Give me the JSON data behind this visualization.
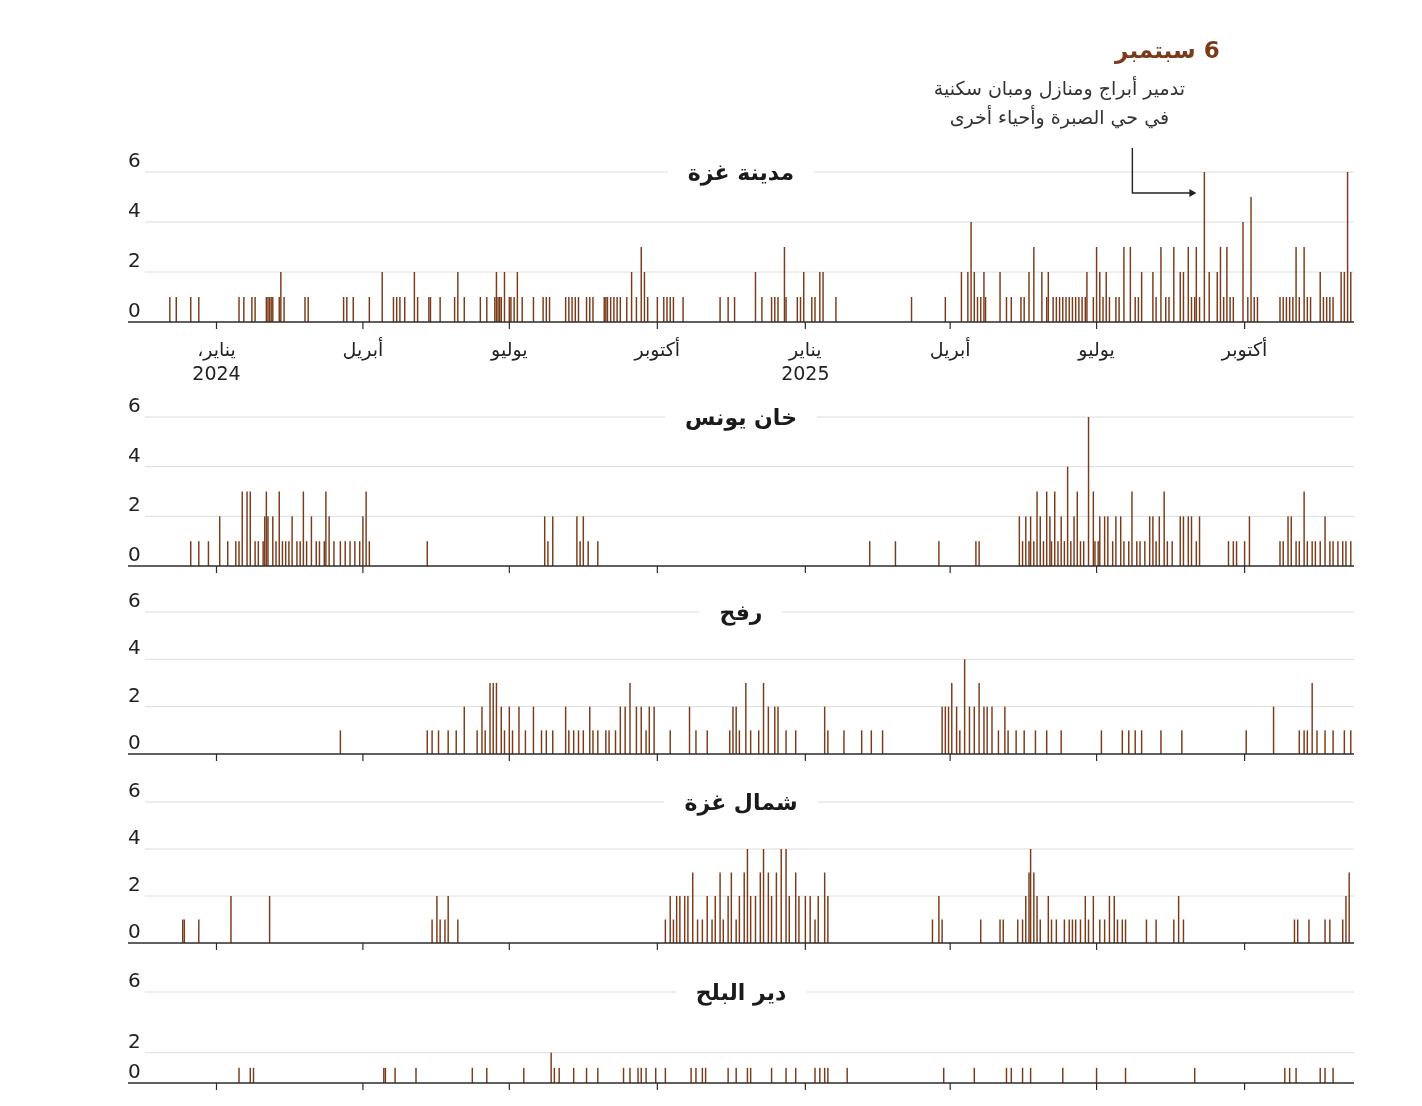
{
  "chart_data": [
    {
      "type": "bar",
      "title": "مدينة غزة",
      "color": "#7a3b1a",
      "grid": "y",
      "xlim": [
        "2023-11-07",
        "2025-12-08"
      ],
      "ylim": [
        0,
        6
      ],
      "yticks": [
        0,
        2,
        4,
        6
      ],
      "xticks": [
        {
          "value": "2024-01-01",
          "label": "يناير،\n2024"
        },
        {
          "value": "2024-04-01",
          "label": "أبريل"
        },
        {
          "value": "2024-07-01",
          "label": "يوليو"
        },
        {
          "value": "2024-10-01",
          "label": "أكتوبر"
        },
        {
          "value": "2025-01-01",
          "label": "يناير\n2025"
        },
        {
          "value": "2025-04-01",
          "label": "أبريل"
        },
        {
          "value": "2025-07-01",
          "label": "يوليو"
        },
        {
          "value": "2025-10-01",
          "label": "أكتوبر"
        }
      ],
      "annotations": [
        "6 سبتمبر",
        {
          "text": "تدمير أبراج ومنازل ومبان سكنية\nفي حي الصبرة وأحياء أخرى",
          "x": "2025-09-06",
          "y": 6
        }
      ],
      "x": [
        "2023-12-03",
        "2023-12-07",
        "2023-12-16",
        "2023-12-21",
        "2024-01-15",
        "2024-01-18",
        "2024-01-23",
        "2024-01-25",
        "2024-02-01",
        "2024-02-02",
        "2024-02-03",
        "2024-02-04",
        "2024-02-05",
        "2024-02-09",
        "2024-02-10",
        "2024-02-12",
        "2024-02-25",
        "2024-02-27",
        "2024-03-20",
        "2024-03-22",
        "2024-03-26",
        "2024-04-05",
        "2024-04-13",
        "2024-04-20",
        "2024-04-22",
        "2024-04-24",
        "2024-04-27",
        "2024-05-03",
        "2024-05-05",
        "2024-05-12",
        "2024-05-13",
        "2024-05-19",
        "2024-05-28",
        "2024-05-30",
        "2024-06-03",
        "2024-06-13",
        "2024-06-17",
        "2024-06-22",
        "2024-06-23",
        "2024-06-24",
        "2024-06-25",
        "2024-06-26",
        "2024-06-28",
        "2024-07-01",
        "2024-07-02",
        "2024-07-04",
        "2024-07-06",
        "2024-07-09",
        "2024-07-16",
        "2024-07-22",
        "2024-07-24",
        "2024-07-26",
        "2024-08-05",
        "2024-08-07",
        "2024-08-09",
        "2024-08-11",
        "2024-08-13",
        "2024-08-18",
        "2024-08-20",
        "2024-08-22",
        "2024-08-29",
        "2024-08-30",
        "2024-08-31",
        "2024-09-02",
        "2024-09-04",
        "2024-09-06",
        "2024-09-08",
        "2024-09-12",
        "2024-09-15",
        "2024-09-18",
        "2024-09-21",
        "2024-09-23",
        "2024-09-25",
        "2024-10-01",
        "2024-10-05",
        "2024-10-07",
        "2024-10-09",
        "2024-10-11",
        "2024-10-17",
        "2024-11-09",
        "2024-11-14",
        "2024-11-18",
        "2024-12-01",
        "2024-12-05",
        "2024-12-11",
        "2024-12-13",
        "2024-12-15",
        "2024-12-19",
        "2024-12-20",
        "2024-12-27",
        "2024-12-29",
        "2024-12-31",
        "2025-01-05",
        "2025-01-07",
        "2025-01-10",
        "2025-01-12",
        "2025-01-20",
        "2025-03-08",
        "2025-03-29",
        "2025-04-08",
        "2025-04-12",
        "2025-04-14",
        "2025-04-16",
        "2025-04-18",
        "2025-04-20",
        "2025-04-22",
        "2025-04-23",
        "2025-05-02",
        "2025-05-06",
        "2025-05-09",
        "2025-05-15",
        "2025-05-17",
        "2025-05-20",
        "2025-05-23",
        "2025-05-28",
        "2025-05-31",
        "2025-06-01",
        "2025-06-04",
        "2025-06-06",
        "2025-06-08",
        "2025-06-10",
        "2025-06-12",
        "2025-06-14",
        "2025-06-16",
        "2025-06-18",
        "2025-06-20",
        "2025-06-22",
        "2025-06-24",
        "2025-06-25",
        "2025-06-29",
        "2025-07-01",
        "2025-07-03",
        "2025-07-05",
        "2025-07-07",
        "2025-07-09",
        "2025-07-13",
        "2025-07-15",
        "2025-07-18",
        "2025-07-22",
        "2025-07-25",
        "2025-07-27",
        "2025-07-29",
        "2025-08-05",
        "2025-08-07",
        "2025-08-10",
        "2025-08-13",
        "2025-08-15",
        "2025-08-18",
        "2025-08-22",
        "2025-08-24",
        "2025-08-27",
        "2025-08-29",
        "2025-08-31",
        "2025-09-01",
        "2025-09-03",
        "2025-09-06",
        "2025-09-09",
        "2025-09-14",
        "2025-09-16",
        "2025-09-18",
        "2025-09-20",
        "2025-09-22",
        "2025-09-24",
        "2025-09-30",
        "2025-10-03",
        "2025-10-05",
        "2025-10-07",
        "2025-10-09",
        "2025-10-23",
        "2025-10-25",
        "2025-10-27",
        "2025-10-29",
        "2025-10-31",
        "2025-11-02",
        "2025-11-04",
        "2025-11-07",
        "2025-11-09",
        "2025-11-11",
        "2025-11-17",
        "2025-11-19",
        "2025-11-21",
        "2025-11-23",
        "2025-11-25",
        "2025-11-30",
        "2025-12-02",
        "2025-12-04",
        "2025-12-06"
      ],
      "values": [
        1,
        1,
        1,
        1,
        1,
        1,
        1,
        1,
        1,
        1,
        1,
        1,
        1,
        1,
        2,
        1,
        1,
        1,
        1,
        1,
        1,
        1,
        2,
        1,
        1,
        1,
        1,
        2,
        1,
        1,
        1,
        1,
        1,
        2,
        1,
        1,
        1,
        1,
        2,
        1,
        1,
        1,
        2,
        1,
        1,
        1,
        2,
        1,
        1,
        1,
        1,
        1,
        1,
        1,
        1,
        1,
        1,
        1,
        1,
        1,
        1,
        1,
        1,
        1,
        1,
        1,
        1,
        1,
        2,
        1,
        3,
        2,
        1,
        1,
        1,
        1,
        1,
        1,
        1,
        1,
        1,
        1,
        2,
        1,
        1,
        1,
        1,
        3,
        1,
        1,
        1,
        2,
        1,
        1,
        2,
        2,
        1,
        1,
        1,
        2,
        2,
        4,
        2,
        1,
        1,
        2,
        1,
        2,
        1,
        1,
        1,
        1,
        2,
        3,
        2,
        1,
        2,
        1,
        1,
        1,
        1,
        1,
        1,
        1,
        1,
        1,
        1,
        1,
        2,
        1,
        3,
        2,
        1,
        2,
        1,
        1,
        1,
        3,
        3,
        1,
        1,
        2,
        2,
        1,
        3,
        1,
        1,
        3,
        2,
        2,
        3,
        1,
        1,
        3,
        1,
        6,
        2,
        2,
        3,
        1,
        3,
        1,
        1,
        4,
        1,
        5,
        1,
        1,
        1,
        1,
        1,
        1,
        1,
        3,
        1,
        3,
        1,
        1,
        2,
        1,
        1,
        1,
        1,
        2,
        2,
        6,
        2
      ]
    },
    {
      "type": "bar",
      "title": "خان يونس",
      "color": "#7a3b1a",
      "grid": "y",
      "tick_labels": "y",
      "xlim": [
        "2023-11-07",
        "2025-12-08"
      ],
      "ylim": [
        0,
        6
      ],
      "yticks": [
        0,
        2,
        4,
        6
      ],
      "xticks": [
        {
          "value": "2024-01-01",
          "label": null
        },
        {
          "value": "2024-04-01",
          "label": null
        },
        {
          "value": "2024-07-01",
          "label": null
        },
        {
          "value": "2024-10-01",
          "label": null
        },
        {
          "value": "2025-01-01",
          "label": null
        },
        {
          "value": "2025-04-01",
          "label": null
        },
        {
          "value": "2025-07-01",
          "label": null
        },
        {
          "value": "2025-10-01",
          "label": null
        }
      ],
      "x": [
        "2023-12-16",
        "2023-12-21",
        "2023-12-27",
        "2024-01-03",
        "2024-01-08",
        "2024-01-13",
        "2024-01-15",
        "2024-01-17",
        "2024-01-20",
        "2024-01-22",
        "2024-01-25",
        "2024-01-27",
        "2024-01-30",
        "2024-01-31",
        "2024-02-01",
        "2024-02-02",
        "2024-02-05",
        "2024-02-07",
        "2024-02-09",
        "2024-02-11",
        "2024-02-13",
        "2024-02-15",
        "2024-02-17",
        "2024-02-20",
        "2024-02-22",
        "2024-02-24",
        "2024-02-26",
        "2024-02-29",
        "2024-03-03",
        "2024-03-05",
        "2024-03-08",
        "2024-03-09",
        "2024-03-11",
        "2024-03-14",
        "2024-03-18",
        "2024-03-21",
        "2024-03-24",
        "2024-03-27",
        "2024-03-30",
        "2024-04-01",
        "2024-04-03",
        "2024-04-05",
        "2024-05-11",
        "2024-07-23",
        "2024-07-25",
        "2024-07-28",
        "2024-08-12",
        "2024-08-14",
        "2024-08-16",
        "2024-08-19",
        "2024-08-25",
        "2025-02-10",
        "2025-02-26",
        "2025-03-25",
        "2025-04-17",
        "2025-04-19",
        "2025-05-14",
        "2025-05-16",
        "2025-05-18",
        "2025-05-20",
        "2025-05-21",
        "2025-05-23",
        "2025-05-25",
        "2025-05-27",
        "2025-05-29",
        "2025-05-31",
        "2025-06-02",
        "2025-06-03",
        "2025-06-05",
        "2025-06-07",
        "2025-06-09",
        "2025-06-11",
        "2025-06-13",
        "2025-06-15",
        "2025-06-17",
        "2025-06-19",
        "2025-06-21",
        "2025-06-23",
        "2025-06-26",
        "2025-06-29",
        "2025-06-30",
        "2025-07-02",
        "2025-07-03",
        "2025-07-06",
        "2025-07-08",
        "2025-07-11",
        "2025-07-13",
        "2025-07-16",
        "2025-07-18",
        "2025-07-21",
        "2025-07-23",
        "2025-07-26",
        "2025-07-28",
        "2025-07-31",
        "2025-08-03",
        "2025-08-05",
        "2025-08-07",
        "2025-08-09",
        "2025-08-12",
        "2025-08-14",
        "2025-08-17",
        "2025-08-22",
        "2025-08-24",
        "2025-08-27",
        "2025-08-29",
        "2025-09-01",
        "2025-09-03",
        "2025-09-21",
        "2025-09-24",
        "2025-09-26",
        "2025-10-01",
        "2025-10-04",
        "2025-10-23",
        "2025-10-25",
        "2025-10-28",
        "2025-10-30",
        "2025-11-02",
        "2025-11-04",
        "2025-11-07",
        "2025-11-09",
        "2025-11-12",
        "2025-11-14",
        "2025-11-17",
        "2025-11-20",
        "2025-11-23",
        "2025-11-25",
        "2025-11-28",
        "2025-12-01",
        "2025-12-03",
        "2025-12-06"
      ],
      "values": [
        1,
        1,
        1,
        2,
        1,
        1,
        1,
        3,
        3,
        3,
        1,
        1,
        1,
        2,
        3,
        2,
        2,
        1,
        3,
        1,
        1,
        1,
        2,
        1,
        1,
        3,
        1,
        2,
        1,
        1,
        1,
        3,
        2,
        1,
        1,
        1,
        1,
        1,
        1,
        2,
        3,
        1,
        1,
        2,
        1,
        2,
        2,
        1,
        2,
        1,
        1,
        1,
        1,
        1,
        1,
        1,
        2,
        1,
        2,
        1,
        2,
        1,
        3,
        2,
        1,
        3,
        2,
        1,
        3,
        1,
        2,
        1,
        4,
        1,
        2,
        3,
        1,
        1,
        6,
        3,
        1,
        1,
        2,
        2,
        2,
        1,
        2,
        2,
        1,
        1,
        3,
        1,
        1,
        1,
        2,
        2,
        1,
        2,
        3,
        1,
        1,
        2,
        2,
        2,
        2,
        1,
        2,
        1,
        1,
        1,
        1,
        2,
        1,
        1,
        2,
        2,
        1,
        1,
        3,
        1,
        1,
        1,
        1,
        2,
        1,
        1,
        1,
        1,
        1,
        1
      ]
    },
    {
      "type": "bar",
      "title": "رفح",
      "color": "#7a3b1a",
      "grid": "y",
      "tick_labels": "y",
      "xlim": [
        "2023-11-07",
        "2025-12-08"
      ],
      "ylim": [
        0,
        6
      ],
      "yticks": [
        0,
        2,
        4,
        6
      ],
      "xticks": [
        {
          "value": "2024-01-01",
          "label": null
        },
        {
          "value": "2024-04-01",
          "label": null
        },
        {
          "value": "2024-07-01",
          "label": null
        },
        {
          "value": "2024-10-01",
          "label": null
        },
        {
          "value": "2025-01-01",
          "label": null
        },
        {
          "value": "2025-04-01",
          "label": null
        },
        {
          "value": "2025-07-01",
          "label": null
        },
        {
          "value": "2025-10-01",
          "label": null
        }
      ],
      "x": [
        "2024-03-18",
        "2024-05-11",
        "2024-05-14",
        "2024-05-18",
        "2024-05-24",
        "2024-05-29",
        "2024-06-03",
        "2024-06-11",
        "2024-06-14",
        "2024-06-16",
        "2024-06-19",
        "2024-06-21",
        "2024-06-23",
        "2024-06-26",
        "2024-06-28",
        "2024-07-01",
        "2024-07-03",
        "2024-07-07",
        "2024-07-11",
        "2024-07-16",
        "2024-07-21",
        "2024-07-24",
        "2024-07-28",
        "2024-08-05",
        "2024-08-07",
        "2024-08-10",
        "2024-08-13",
        "2024-08-16",
        "2024-08-20",
        "2024-08-22",
        "2024-08-25",
        "2024-08-30",
        "2024-09-01",
        "2024-09-05",
        "2024-09-08",
        "2024-09-11",
        "2024-09-14",
        "2024-09-18",
        "2024-09-21",
        "2024-09-24",
        "2024-09-26",
        "2024-09-29",
        "2024-10-09",
        "2024-10-21",
        "2024-10-25",
        "2024-11-01",
        "2024-11-15",
        "2024-11-17",
        "2024-11-19",
        "2024-11-21",
        "2024-11-25",
        "2024-11-28",
        "2024-12-03",
        "2024-12-06",
        "2024-12-09",
        "2024-12-13",
        "2024-12-15",
        "2024-12-20",
        "2024-12-26",
        "2025-01-13",
        "2025-01-15",
        "2025-01-25",
        "2025-02-05",
        "2025-02-11",
        "2025-02-18",
        "2025-03-27",
        "2025-03-29",
        "2025-03-31",
        "2025-04-02",
        "2025-04-05",
        "2025-04-07",
        "2025-04-10",
        "2025-04-13",
        "2025-04-16",
        "2025-04-19",
        "2025-04-22",
        "2025-04-24",
        "2025-04-27",
        "2025-05-01",
        "2025-05-05",
        "2025-05-07",
        "2025-05-12",
        "2025-05-17",
        "2025-05-24",
        "2025-05-31",
        "2025-06-09",
        "2025-07-04",
        "2025-07-17",
        "2025-07-21",
        "2025-07-25",
        "2025-07-29",
        "2025-08-10",
        "2025-08-23",
        "2025-10-02",
        "2025-10-19",
        "2025-11-04",
        "2025-11-07",
        "2025-11-09",
        "2025-11-12",
        "2025-11-15",
        "2025-11-20",
        "2025-11-25",
        "2025-12-02",
        "2025-12-06"
      ],
      "values": [
        1,
        1,
        1,
        1,
        1,
        1,
        2,
        1,
        2,
        1,
        3,
        3,
        3,
        2,
        1,
        2,
        1,
        2,
        1,
        2,
        1,
        1,
        1,
        2,
        1,
        1,
        1,
        1,
        2,
        1,
        1,
        1,
        1,
        1,
        2,
        2,
        3,
        2,
        2,
        1,
        2,
        2,
        1,
        2,
        1,
        1,
        1,
        2,
        2,
        1,
        3,
        1,
        1,
        3,
        2,
        2,
        2,
        1,
        1,
        2,
        1,
        1,
        1,
        1,
        1,
        2,
        2,
        2,
        3,
        2,
        1,
        4,
        2,
        2,
        3,
        2,
        2,
        2,
        1,
        2,
        1,
        1,
        1,
        1,
        1,
        1,
        1,
        1,
        1,
        1,
        1,
        1,
        1,
        1,
        2,
        1,
        1,
        1,
        3,
        1,
        1,
        1,
        1,
        1
      ]
    },
    {
      "type": "bar",
      "title": "شمال غزة",
      "color": "#7a3b1a",
      "grid": "y",
      "tick_labels": "y",
      "xlim": [
        "2023-11-07",
        "2025-12-08"
      ],
      "ylim": [
        0,
        6
      ],
      "yticks": [
        0,
        2,
        4,
        6
      ],
      "xticks": [
        {
          "value": "2024-01-01",
          "label": null
        },
        {
          "value": "2024-04-01",
          "label": null
        },
        {
          "value": "2024-07-01",
          "label": null
        },
        {
          "value": "2024-10-01",
          "label": null
        },
        {
          "value": "2025-01-01",
          "label": null
        },
        {
          "value": "2025-04-01",
          "label": null
        },
        {
          "value": "2025-07-01",
          "label": null
        },
        {
          "value": "2025-10-01",
          "label": null
        }
      ],
      "x": [
        "2023-12-11",
        "2023-12-12",
        "2023-12-21",
        "2024-01-10",
        "2024-02-03",
        "2024-05-14",
        "2024-05-17",
        "2024-05-19",
        "2024-05-22",
        "2024-05-24",
        "2024-05-30",
        "2024-10-06",
        "2024-10-09",
        "2024-10-11",
        "2024-10-13",
        "2024-10-15",
        "2024-10-18",
        "2024-10-20",
        "2024-10-23",
        "2024-10-26",
        "2024-10-29",
        "2024-11-01",
        "2024-11-04",
        "2024-11-06",
        "2024-11-09",
        "2024-11-11",
        "2024-11-14",
        "2024-11-16",
        "2024-11-19",
        "2024-11-21",
        "2024-11-24",
        "2024-11-26",
        "2024-11-28",
        "2024-12-01",
        "2024-12-04",
        "2024-12-06",
        "2024-12-09",
        "2024-12-11",
        "2024-12-14",
        "2024-12-17",
        "2024-12-20",
        "2024-12-22",
        "2024-12-26",
        "2024-12-28",
        "2025-01-01",
        "2025-01-04",
        "2025-01-07",
        "2025-01-09",
        "2025-01-13",
        "2025-01-15",
        "2025-03-21",
        "2025-03-25",
        "2025-03-27",
        "2025-04-20",
        "2025-05-02",
        "2025-05-04",
        "2025-05-13",
        "2025-05-16",
        "2025-05-18",
        "2025-05-20",
        "2025-05-21",
        "2025-05-23",
        "2025-05-25",
        "2025-05-27",
        "2025-06-01",
        "2025-06-03",
        "2025-06-06",
        "2025-06-11",
        "2025-06-14",
        "2025-06-16",
        "2025-06-18",
        "2025-06-21",
        "2025-06-24",
        "2025-06-26",
        "2025-06-29",
        "2025-07-03",
        "2025-07-06",
        "2025-07-09",
        "2025-07-12",
        "2025-07-14",
        "2025-07-17",
        "2025-07-19",
        "2025-08-01",
        "2025-08-07",
        "2025-08-18",
        "2025-08-21",
        "2025-08-24",
        "2025-11-01",
        "2025-11-03",
        "2025-11-10",
        "2025-11-20",
        "2025-11-23",
        "2025-12-01",
        "2025-12-03",
        "2025-12-05"
      ],
      "values": [
        1,
        1,
        1,
        2,
        2,
        1,
        2,
        1,
        1,
        2,
        1,
        1,
        2,
        1,
        2,
        2,
        2,
        2,
        3,
        1,
        1,
        2,
        1,
        2,
        3,
        1,
        2,
        3,
        1,
        2,
        3,
        4,
        2,
        2,
        3,
        4,
        3,
        2,
        3,
        4,
        4,
        2,
        3,
        2,
        2,
        2,
        1,
        2,
        3,
        2,
        1,
        2,
        1,
        1,
        1,
        1,
        1,
        1,
        2,
        3,
        4,
        3,
        2,
        1,
        2,
        1,
        1,
        1,
        1,
        1,
        1,
        1,
        2,
        1,
        2,
        1,
        1,
        2,
        2,
        1,
        1,
        1,
        1,
        1,
        1,
        2,
        1,
        1,
        1,
        1,
        1,
        1,
        1,
        2,
        3
      ]
    },
    {
      "type": "bar",
      "title": "دير البلح",
      "color": "#7a3b1a",
      "grid": "y",
      "tick_labels": "y",
      "xlim": [
        "2023-11-07",
        "2025-12-08"
      ],
      "ylim": [
        0,
        6
      ],
      "yticks": [
        0,
        2,
        6
      ],
      "xticks": [
        {
          "value": "2024-01-01",
          "label": null
        },
        {
          "value": "2024-04-01",
          "label": null
        },
        {
          "value": "2024-07-01",
          "label": null
        },
        {
          "value": "2024-10-01",
          "label": null
        },
        {
          "value": "2025-01-01",
          "label": null
        },
        {
          "value": "2025-04-01",
          "label": null
        },
        {
          "value": "2025-07-01",
          "label": null
        },
        {
          "value": "2025-10-01",
          "label": null
        }
      ],
      "x": [
        "2024-01-15",
        "2024-01-22",
        "2024-01-24",
        "2024-04-14",
        "2024-04-15",
        "2024-04-21",
        "2024-05-04",
        "2024-06-08",
        "2024-06-17",
        "2024-07-10",
        "2024-07-27",
        "2024-07-29",
        "2024-08-01",
        "2024-08-10",
        "2024-08-18",
        "2024-08-25",
        "2024-09-10",
        "2024-09-14",
        "2024-09-19",
        "2024-09-21",
        "2024-09-24",
        "2024-09-30",
        "2024-10-06",
        "2024-10-22",
        "2024-10-25",
        "2024-10-29",
        "2024-10-31",
        "2024-11-14",
        "2024-11-19",
        "2024-11-26",
        "2024-11-28",
        "2024-12-11",
        "2024-12-20",
        "2024-12-26",
        "2025-01-07",
        "2025-01-10",
        "2025-01-13",
        "2025-01-15",
        "2025-01-27",
        "2025-03-28",
        "2025-04-16",
        "2025-05-06",
        "2025-05-09",
        "2025-05-16",
        "2025-05-21",
        "2025-06-10",
        "2025-07-01",
        "2025-07-19",
        "2025-08-31",
        "2025-10-26",
        "2025-10-29",
        "2025-11-02",
        "2025-11-17",
        "2025-11-20",
        "2025-11-25"
      ],
      "values": [
        1,
        1,
        1,
        1,
        1,
        1,
        1,
        1,
        1,
        1,
        2,
        1,
        1,
        1,
        1,
        1,
        1,
        1,
        1,
        1,
        1,
        1,
        1,
        1,
        1,
        1,
        1,
        1,
        1,
        1,
        1,
        1,
        1,
        1,
        1,
        1,
        1,
        1,
        1,
        1,
        1,
        1,
        1,
        1,
        1,
        1,
        1,
        1,
        1,
        1,
        1,
        1,
        1,
        1,
        1
      ]
    }
  ]
}
